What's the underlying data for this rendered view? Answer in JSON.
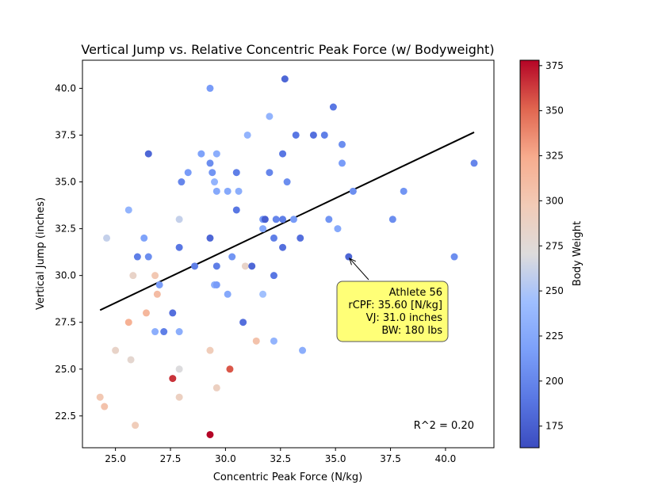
{
  "chart_data": {
    "type": "scatter",
    "title": "Vertical Jump vs. Relative Concentric Peak Force (w/ Bodyweight)",
    "xlabel": "Concentric Peak Force (N/kg)",
    "ylabel": "Vertical Jump (inches)",
    "xlim": [
      23.5,
      42.2
    ],
    "ylim": [
      20.8,
      41.5
    ],
    "xticks": [
      "25.0",
      "27.5",
      "30.0",
      "32.5",
      "35.0",
      "37.5",
      "40.0"
    ],
    "yticks": [
      "22.5",
      "25.0",
      "27.5",
      "30.0",
      "32.5",
      "35.0",
      "37.5",
      "40.0"
    ],
    "grid": false,
    "colorbar": {
      "label": "Body Weight",
      "range": [
        163,
        378
      ],
      "ticks": [
        "175",
        "200",
        "225",
        "250",
        "275",
        "300",
        "325",
        "350",
        "375"
      ],
      "colormap": "coolwarm"
    },
    "points": [
      {
        "x": 24.3,
        "y": 23.5,
        "c": 300
      },
      {
        "x": 24.5,
        "y": 23.0,
        "c": 305
      },
      {
        "x": 24.6,
        "y": 32.0,
        "c": 260
      },
      {
        "x": 25.0,
        "y": 26.0,
        "c": 285
      },
      {
        "x": 25.6,
        "y": 33.5,
        "c": 235
      },
      {
        "x": 25.6,
        "y": 27.5,
        "c": 320
      },
      {
        "x": 25.7,
        "y": 25.5,
        "c": 280
      },
      {
        "x": 25.8,
        "y": 30.0,
        "c": 285
      },
      {
        "x": 25.9,
        "y": 22.0,
        "c": 295
      },
      {
        "x": 26.0,
        "y": 31.0,
        "c": 195
      },
      {
        "x": 26.3,
        "y": 32.0,
        "c": 220
      },
      {
        "x": 26.4,
        "y": 28.0,
        "c": 315
      },
      {
        "x": 26.5,
        "y": 36.5,
        "c": 180
      },
      {
        "x": 26.5,
        "y": 31.0,
        "c": 205
      },
      {
        "x": 26.8,
        "y": 27.0,
        "c": 230
      },
      {
        "x": 26.8,
        "y": 30.0,
        "c": 300
      },
      {
        "x": 26.9,
        "y": 29.0,
        "c": 310
      },
      {
        "x": 27.0,
        "y": 29.5,
        "c": 215
      },
      {
        "x": 27.2,
        "y": 27.0,
        "c": 195
      },
      {
        "x": 27.6,
        "y": 28.0,
        "c": 185
      },
      {
        "x": 27.6,
        "y": 24.5,
        "c": 365
      },
      {
        "x": 27.9,
        "y": 33.0,
        "c": 260
      },
      {
        "x": 27.9,
        "y": 31.5,
        "c": 190
      },
      {
        "x": 27.9,
        "y": 27.0,
        "c": 230
      },
      {
        "x": 27.9,
        "y": 25.0,
        "c": 270
      },
      {
        "x": 27.9,
        "y": 23.5,
        "c": 290
      },
      {
        "x": 28.0,
        "y": 35.0,
        "c": 200
      },
      {
        "x": 28.3,
        "y": 35.5,
        "c": 215
      },
      {
        "x": 28.6,
        "y": 30.5,
        "c": 195
      },
      {
        "x": 28.9,
        "y": 36.5,
        "c": 220
      },
      {
        "x": 29.3,
        "y": 40.0,
        "c": 215
      },
      {
        "x": 29.3,
        "y": 36.0,
        "c": 205
      },
      {
        "x": 29.3,
        "y": 32.0,
        "c": 180
      },
      {
        "x": 29.3,
        "y": 26.0,
        "c": 295
      },
      {
        "x": 29.3,
        "y": 21.5,
        "c": 378
      },
      {
        "x": 29.4,
        "y": 35.5,
        "c": 210
      },
      {
        "x": 29.5,
        "y": 35.0,
        "c": 235
      },
      {
        "x": 29.5,
        "y": 29.5,
        "c": 230
      },
      {
        "x": 29.6,
        "y": 36.5,
        "c": 230
      },
      {
        "x": 29.6,
        "y": 34.5,
        "c": 225
      },
      {
        "x": 29.6,
        "y": 30.5,
        "c": 195
      },
      {
        "x": 29.6,
        "y": 29.5,
        "c": 215
      },
      {
        "x": 29.6,
        "y": 24.0,
        "c": 290
      },
      {
        "x": 30.1,
        "y": 34.5,
        "c": 225
      },
      {
        "x": 30.1,
        "y": 29.0,
        "c": 225
      },
      {
        "x": 30.2,
        "y": 25.0,
        "c": 355
      },
      {
        "x": 30.3,
        "y": 31.0,
        "c": 210
      },
      {
        "x": 30.5,
        "y": 35.5,
        "c": 195
      },
      {
        "x": 30.5,
        "y": 33.5,
        "c": 190
      },
      {
        "x": 30.6,
        "y": 34.5,
        "c": 230
      },
      {
        "x": 30.8,
        "y": 27.5,
        "c": 185
      },
      {
        "x": 30.9,
        "y": 30.5,
        "c": 285
      },
      {
        "x": 31.0,
        "y": 37.5,
        "c": 235
      },
      {
        "x": 31.2,
        "y": 30.5,
        "c": 180
      },
      {
        "x": 31.4,
        "y": 26.5,
        "c": 305
      },
      {
        "x": 31.7,
        "y": 33.0,
        "c": 215
      },
      {
        "x": 31.7,
        "y": 32.5,
        "c": 225
      },
      {
        "x": 31.7,
        "y": 29.0,
        "c": 245
      },
      {
        "x": 31.8,
        "y": 33.0,
        "c": 175
      },
      {
        "x": 32.0,
        "y": 38.5,
        "c": 235
      },
      {
        "x": 32.0,
        "y": 35.5,
        "c": 200
      },
      {
        "x": 32.2,
        "y": 32.0,
        "c": 195
      },
      {
        "x": 32.2,
        "y": 30.0,
        "c": 190
      },
      {
        "x": 32.2,
        "y": 26.5,
        "c": 235
      },
      {
        "x": 32.3,
        "y": 33.0,
        "c": 200
      },
      {
        "x": 32.6,
        "y": 36.5,
        "c": 190
      },
      {
        "x": 32.6,
        "y": 33.0,
        "c": 195
      },
      {
        "x": 32.6,
        "y": 31.5,
        "c": 185
      },
      {
        "x": 32.7,
        "y": 40.5,
        "c": 180
      },
      {
        "x": 32.8,
        "y": 35.0,
        "c": 205
      },
      {
        "x": 33.1,
        "y": 33.0,
        "c": 215
      },
      {
        "x": 33.2,
        "y": 37.5,
        "c": 190
      },
      {
        "x": 33.4,
        "y": 32.0,
        "c": 185
      },
      {
        "x": 33.5,
        "y": 26.0,
        "c": 230
      },
      {
        "x": 34.0,
        "y": 37.5,
        "c": 185
      },
      {
        "x": 34.5,
        "y": 37.5,
        "c": 195
      },
      {
        "x": 34.7,
        "y": 33.0,
        "c": 210
      },
      {
        "x": 34.9,
        "y": 39.0,
        "c": 190
      },
      {
        "x": 35.1,
        "y": 32.5,
        "c": 225
      },
      {
        "x": 35.3,
        "y": 37.0,
        "c": 205
      },
      {
        "x": 35.3,
        "y": 36.0,
        "c": 215
      },
      {
        "x": 35.6,
        "y": 31.0,
        "c": 180
      },
      {
        "x": 35.8,
        "y": 34.5,
        "c": 205
      },
      {
        "x": 37.6,
        "y": 33.0,
        "c": 205
      },
      {
        "x": 38.1,
        "y": 34.5,
        "c": 210
      },
      {
        "x": 40.4,
        "y": 31.0,
        "c": 205
      },
      {
        "x": 41.3,
        "y": 36.0,
        "c": 200
      }
    ],
    "fit_line": {
      "x": [
        24.3,
        41.3
      ],
      "y": [
        28.15,
        37.65
      ],
      "color": "#000000"
    },
    "r_squared_label": "R^2 = 0.20",
    "annotation": {
      "target": {
        "x": 35.6,
        "y": 31.0
      },
      "lines": [
        "Athlete 56",
        "rCPF: 35.60 [N/kg]",
        "VJ: 31.0 inches",
        "BW: 180 lbs"
      ],
      "box_color": "#ffff77"
    }
  }
}
